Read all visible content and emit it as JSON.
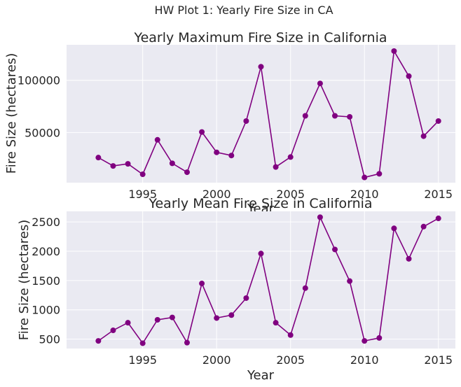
{
  "suptitle": "HW Plot 1: Yearly Fire Size in CA",
  "chart_data": [
    {
      "type": "line",
      "title": "Yearly Maximum Fire Size in California",
      "xlabel": "Year",
      "ylabel": "Fire Size (hectares)",
      "xlim": [
        1989.85,
        2016.15
      ],
      "ylim": [
        2000,
        134000
      ],
      "xticks": [
        1995,
        2000,
        2005,
        2010,
        2015
      ],
      "yticks": [
        50000,
        100000
      ],
      "ytick_labels": [
        "50000",
        "100000"
      ],
      "grid": true,
      "series": [
        {
          "color": "#800080",
          "marker": "circle",
          "x": [
            1992,
            1993,
            1994,
            1995,
            1996,
            1997,
            1998,
            1999,
            2000,
            2001,
            2002,
            2003,
            2004,
            2005,
            2006,
            2007,
            2008,
            2009,
            2010,
            2011,
            2012,
            2013,
            2014,
            2015
          ],
          "y": [
            26000,
            18000,
            20000,
            10000,
            43000,
            20500,
            12000,
            50500,
            31000,
            28000,
            61000,
            113000,
            17000,
            26500,
            66000,
            97000,
            66000,
            65000,
            7000,
            10500,
            128000,
            104000,
            46500,
            61000
          ]
        }
      ]
    },
    {
      "type": "line",
      "title": "Yearly Mean Fire Size in California",
      "xlabel": "Year",
      "ylabel": "Fire Size (hectares)",
      "xlim": [
        1989.85,
        2016.15
      ],
      "ylim": [
        340,
        2680
      ],
      "xticks": [
        1995,
        2000,
        2005,
        2010,
        2015
      ],
      "yticks": [
        500,
        1000,
        1500,
        2000,
        2500
      ],
      "ytick_labels": [
        "500",
        "1000",
        "1500",
        "2000",
        "2500"
      ],
      "grid": true,
      "series": [
        {
          "color": "#800080",
          "marker": "circle",
          "x": [
            1992,
            1993,
            1994,
            1995,
            1996,
            1997,
            1998,
            1999,
            2000,
            2001,
            2002,
            2003,
            2004,
            2005,
            2006,
            2007,
            2008,
            2009,
            2010,
            2011,
            2012,
            2013,
            2014,
            2015
          ],
          "y": [
            470,
            650,
            780,
            430,
            830,
            870,
            440,
            1450,
            860,
            910,
            1200,
            1960,
            780,
            570,
            1370,
            2580,
            2030,
            1490,
            470,
            520,
            2390,
            1870,
            2420,
            2560
          ]
        }
      ]
    }
  ]
}
